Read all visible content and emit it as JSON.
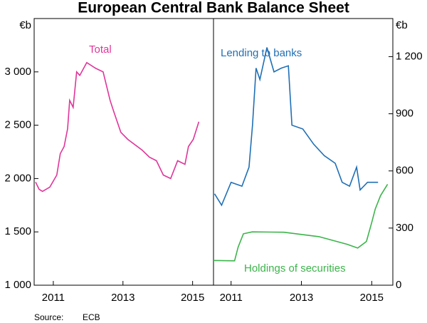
{
  "title": "European Central Bank Balance Sheet",
  "source_label": "Source:",
  "source": "ECB",
  "chart_data": [
    {
      "type": "line",
      "axis_side": "left",
      "y_unit": "€b",
      "xlim": [
        2010.45,
        2015.6
      ],
      "xticks": [
        2011,
        2013,
        2015
      ],
      "ylim": [
        1000,
        3500
      ],
      "yticks": [
        {
          "value": 1000,
          "label": "1 000"
        },
        {
          "value": 1500,
          "label": "1 500"
        },
        {
          "value": 2000,
          "label": "2 000"
        },
        {
          "value": 2500,
          "label": "2 500"
        },
        {
          "value": 3000,
          "label": "3 000"
        }
      ],
      "series": [
        {
          "name": "Total",
          "color": "#e0359a",
          "x": [
            2010.49,
            2010.59,
            2010.69,
            2010.9,
            2011.1,
            2011.2,
            2011.31,
            2011.41,
            2011.47,
            2011.57,
            2011.67,
            2011.76,
            2011.96,
            2012.22,
            2012.43,
            2012.63,
            2012.73,
            2012.94,
            2013.14,
            2013.55,
            2013.76,
            2013.96,
            2014.16,
            2014.37,
            2014.57,
            2014.78,
            2014.88,
            2015.02,
            2015.18
          ],
          "values": [
            1967,
            1900,
            1880,
            1920,
            2033,
            2233,
            2300,
            2467,
            2733,
            2667,
            3000,
            2967,
            3087,
            3033,
            3000,
            2733,
            2633,
            2433,
            2367,
            2267,
            2200,
            2167,
            2033,
            2000,
            2167,
            2133,
            2300,
            2367,
            2533
          ]
        }
      ]
    },
    {
      "type": "line",
      "axis_side": "right",
      "y_unit": "€b",
      "xlim": [
        2010.5,
        2015.6
      ],
      "xticks": [
        2011,
        2013,
        2015
      ],
      "ylim": [
        0,
        1400
      ],
      "yticks": [
        0,
        300,
        600,
        900,
        {
          "value": 1200,
          "label": "1 200"
        }
      ],
      "series": [
        {
          "name": "Lending to banks",
          "color": "#1f6fb5",
          "x": [
            2010.53,
            2010.73,
            2011,
            2011.31,
            2011.51,
            2011.61,
            2011.71,
            2011.82,
            2012.02,
            2012.22,
            2012.43,
            2012.63,
            2012.73,
            2013.04,
            2013.35,
            2013.65,
            2013.96,
            2014.16,
            2014.37,
            2014.57,
            2014.67,
            2014.88,
            2015.18
          ],
          "values": [
            480,
            420,
            540,
            520,
            620,
            840,
            1140,
            1080,
            1248,
            1120,
            1140,
            1152,
            840,
            820,
            740,
            680,
            640,
            540,
            520,
            620,
            500,
            540,
            540
          ]
        },
        {
          "name": "Holdings of securities",
          "color": "#3cb44b",
          "x": [
            2010.5,
            2011.1,
            2011.2,
            2011.35,
            2011.6,
            2012.5,
            2013.5,
            2014.3,
            2014.6,
            2014.85,
            2015.0,
            2015.1,
            2015.25,
            2015.45
          ],
          "values": [
            130,
            128,
            200,
            270,
            280,
            278,
            255,
            215,
            195,
            230,
            330,
            400,
            470,
            530
          ]
        }
      ]
    }
  ]
}
